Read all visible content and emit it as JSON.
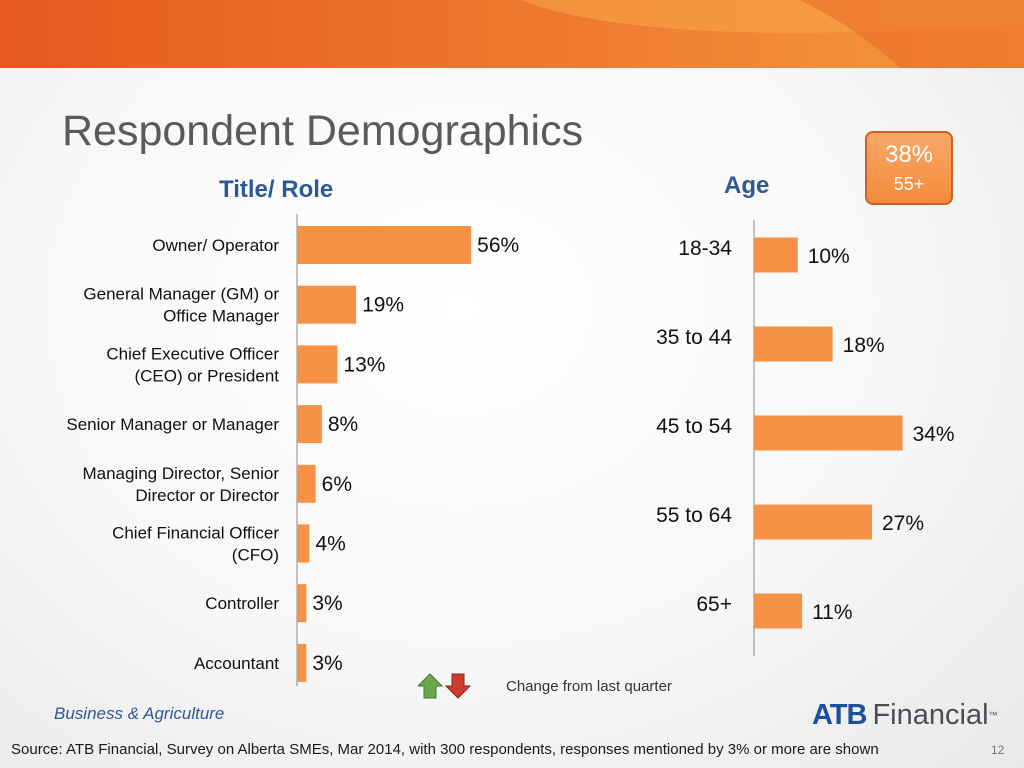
{
  "slide": {
    "title": "Respondent Demographics",
    "division": "Business & Agriculture",
    "source": "Source:  ATB Financial, Survey on Alberta SMEs, Mar 2014, with 300 respondents, responses mentioned by 3% or more are shown",
    "slide_number": "12",
    "logo": {
      "brand": "ATB",
      "word": "Financial",
      "mark": "™"
    },
    "colors": {
      "bar": "#f59246",
      "heading": "#2e5a94",
      "band_dark": "#e45a1f",
      "band_light": "#f39a3e",
      "highlight_border": "#cf5f24"
    }
  },
  "highlight": {
    "value": "38%",
    "label": "55+"
  },
  "legend": {
    "text": "Change from last quarter",
    "up_icon": "green-up-arrow-icon",
    "down_icon": "red-down-arrow-icon",
    "up_color": "#6aa84f",
    "down_color": "#cc3b2d"
  },
  "chart_data": [
    {
      "type": "bar",
      "orientation": "horizontal",
      "title": "Title/ Role",
      "categories": [
        [
          "Owner/ Operator"
        ],
        [
          "General Manager (GM) or",
          "Office Manager"
        ],
        [
          "Chief Executive Officer",
          "(CEO) or President"
        ],
        [
          "Senior Manager or Manager"
        ],
        [
          "Managing Director, Senior",
          "Director or Director"
        ],
        [
          "Chief Financial Officer",
          "(CFO)"
        ],
        [
          "Controller"
        ],
        [
          "Accountant"
        ]
      ],
      "values": [
        56,
        19,
        13,
        8,
        6,
        4,
        3,
        3
      ],
      "value_suffix": "%",
      "xlim": [
        0,
        100
      ]
    },
    {
      "type": "bar",
      "orientation": "horizontal",
      "title": "Age",
      "categories": [
        "18-34",
        "35 to 44",
        "45 to 54",
        "55 to 64",
        "65+"
      ],
      "values": [
        10,
        18,
        34,
        27,
        11
      ],
      "value_suffix": "%",
      "xlim": [
        0,
        100
      ]
    }
  ]
}
